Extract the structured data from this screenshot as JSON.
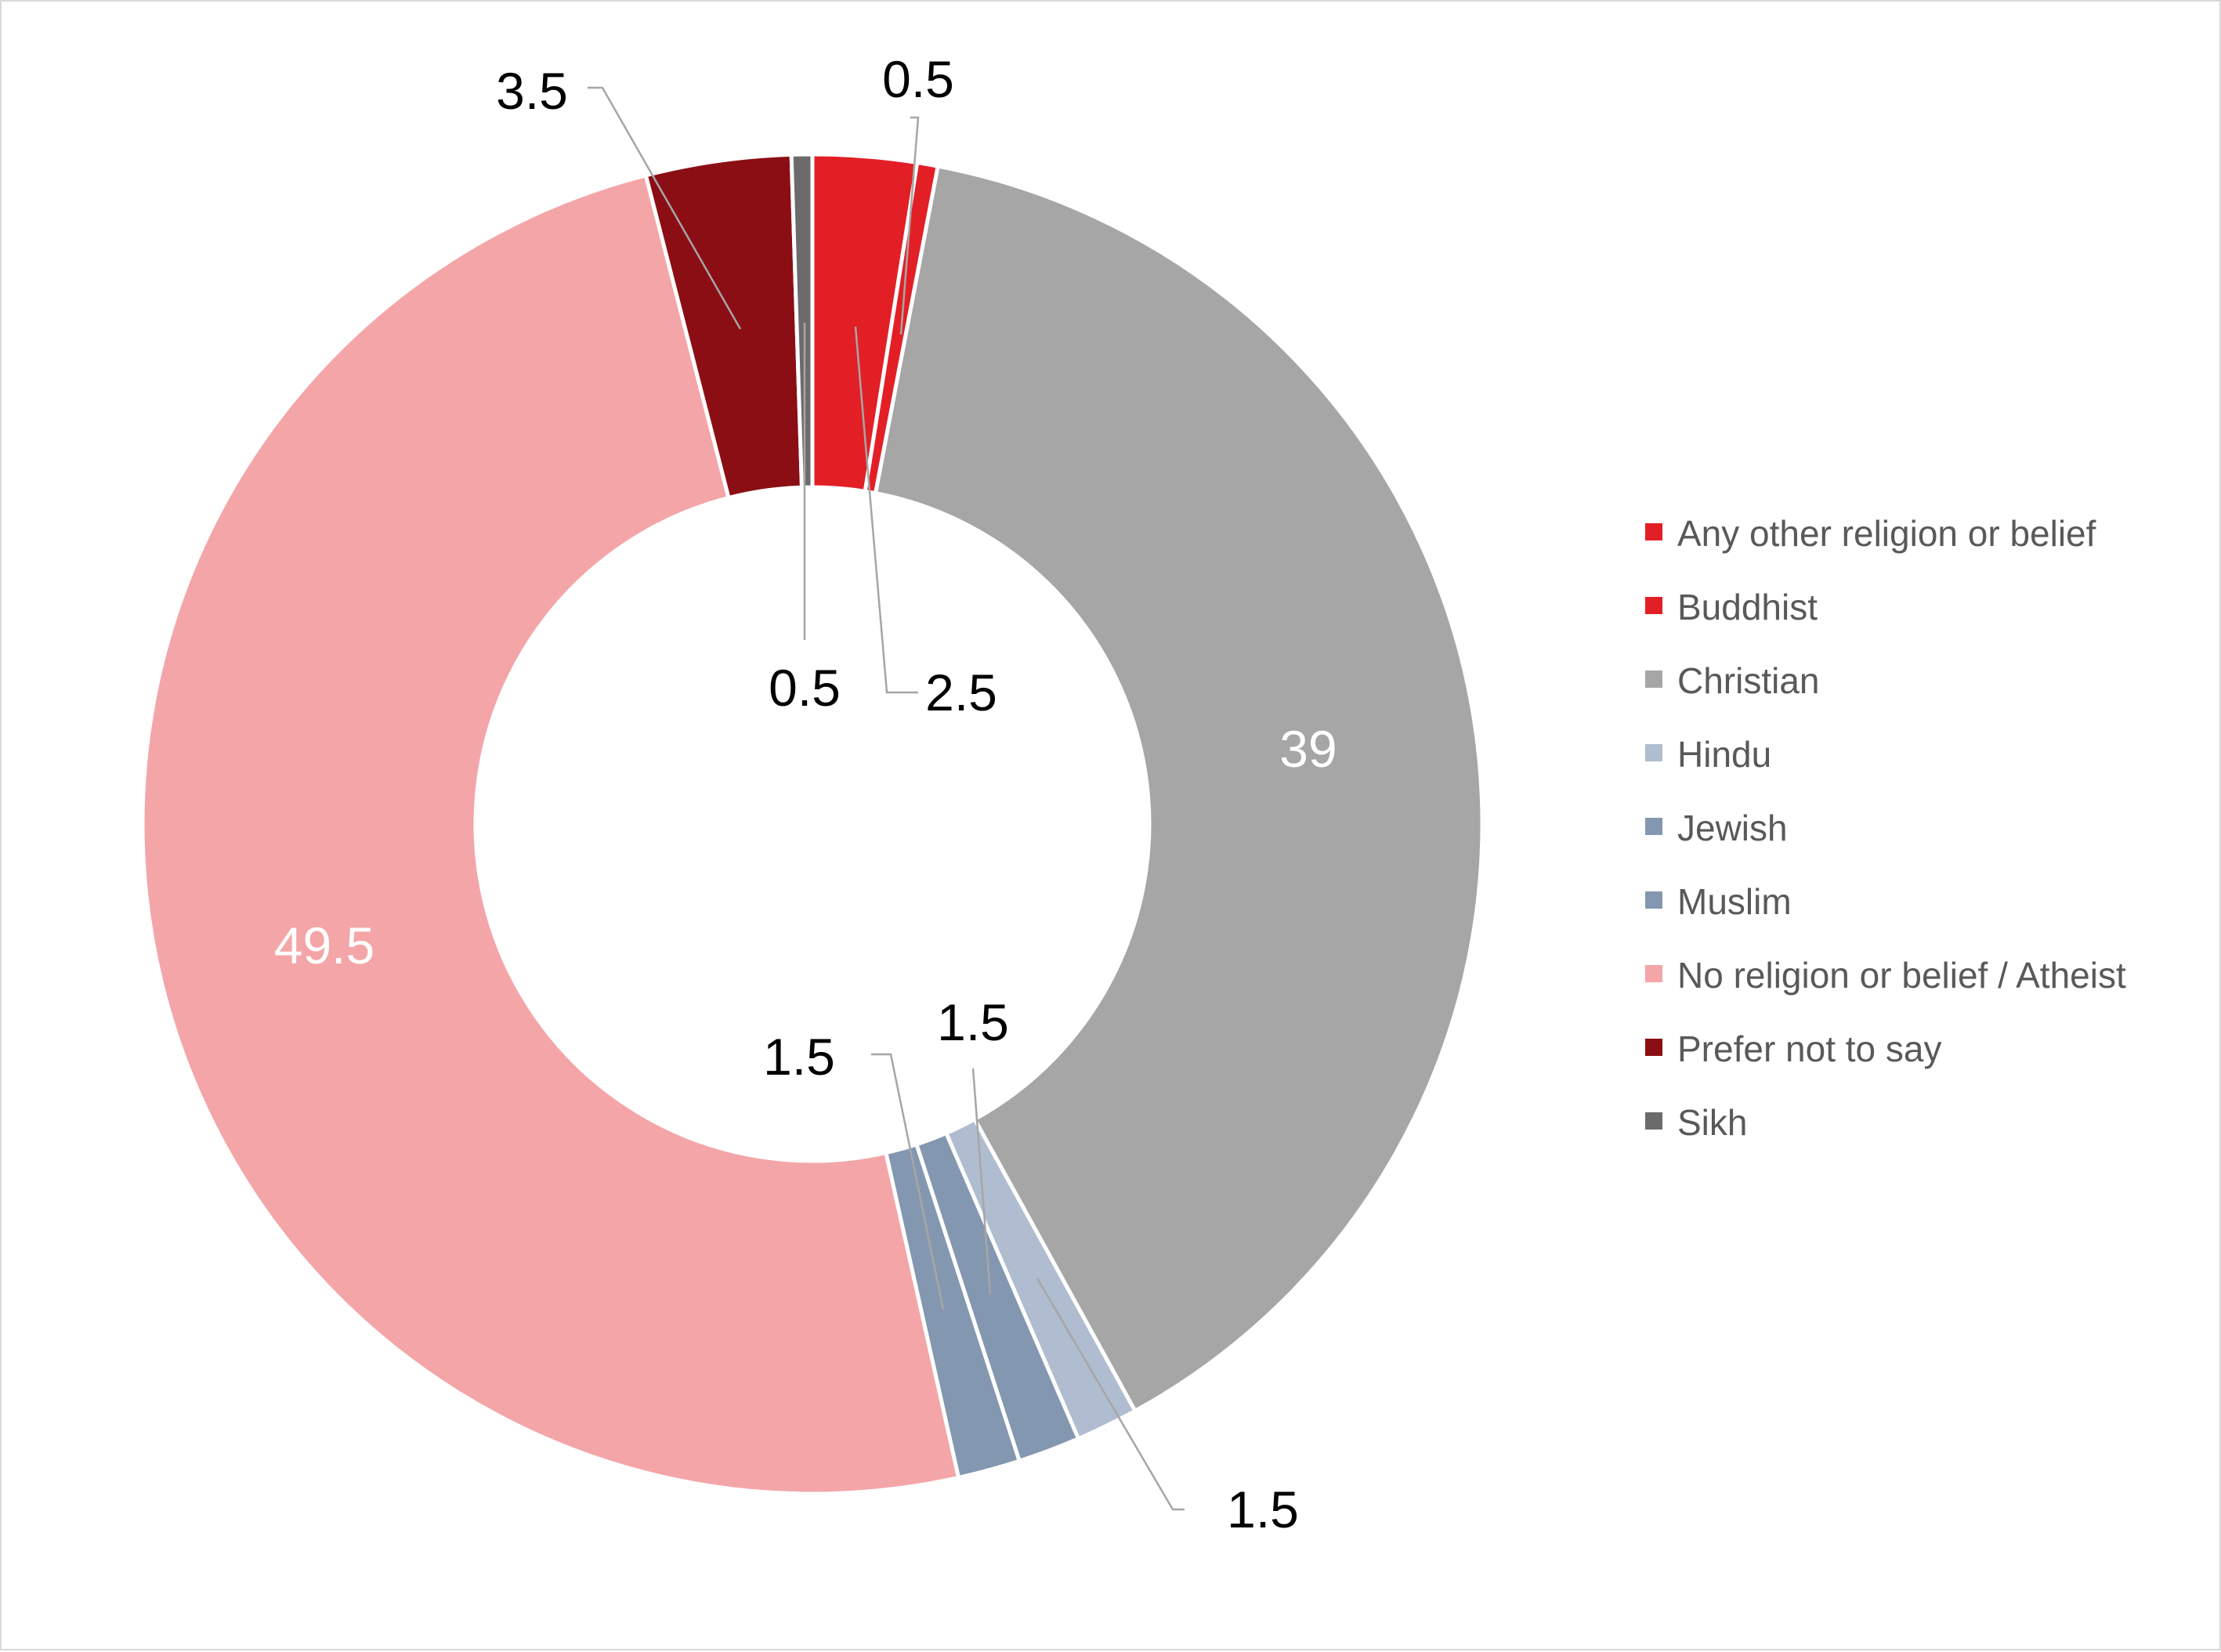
{
  "chart_data": {
    "type": "pie",
    "subtype": "donut",
    "title": "",
    "legend_position": "right",
    "slices": [
      {
        "name": "Any other religion or belief",
        "value": 2.5,
        "label": "2.5",
        "color": "#e31f26",
        "label_color": "#000000"
      },
      {
        "name": "Buddhist",
        "value": 0.5,
        "label": "0.5",
        "color": "#e31f26",
        "label_color": "#000000"
      },
      {
        "name": "Christian",
        "value": 39,
        "label": "39",
        "color": "#a6a6a6",
        "label_color": "#ffffff"
      },
      {
        "name": "Hindu",
        "value": 1.5,
        "label": "1.5",
        "color": "#b0bccf",
        "label_color": "#000000"
      },
      {
        "name": "Jewish",
        "value": 1.5,
        "label": "1.5",
        "color": "#8497b0",
        "label_color": "#000000"
      },
      {
        "name": "Muslim",
        "value": 1.5,
        "label": "1.5",
        "color": "#8497b0",
        "label_color": "#000000"
      },
      {
        "name": "No religion or belief / Atheist",
        "value": 49.5,
        "label": "49.5",
        "color": "#f4a5a8",
        "label_color": "#ffffff"
      },
      {
        "name": "Prefer not to say",
        "value": 3.5,
        "label": "3.5",
        "color": "#8b0e14",
        "label_color": "#000000"
      },
      {
        "name": "Sikh",
        "value": 0.5,
        "label": "0.5",
        "color": "#6b6b6b",
        "label_color": "#000000"
      }
    ]
  }
}
